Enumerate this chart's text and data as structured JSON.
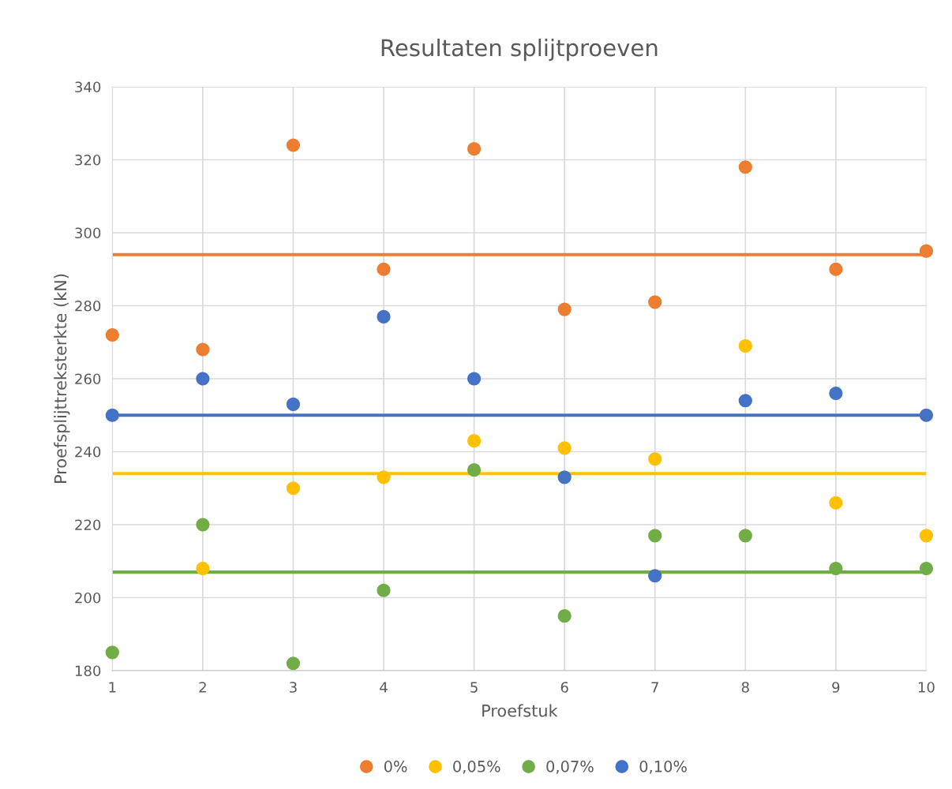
{
  "chart_data": {
    "type": "scatter",
    "title": "Resultaten splijtproeven",
    "xlabel": "Proefstuk",
    "ylabel": "Proefsplijttreksterkte (kN)",
    "x": [
      1,
      2,
      3,
      4,
      5,
      6,
      7,
      8,
      9,
      10
    ],
    "series": [
      {
        "name": "0%",
        "color": "#ed7d31",
        "values": [
          272,
          268,
          324,
          290,
          323,
          279,
          281,
          318,
          290,
          295
        ]
      },
      {
        "name": "0,05%",
        "color": "#ffc000",
        "values": [
          null,
          208,
          230,
          233,
          243,
          241,
          238,
          269,
          226,
          217
        ]
      },
      {
        "name": "0,07%",
        "color": "#70ad47",
        "values": [
          185,
          220,
          182,
          202,
          235,
          195,
          217,
          217,
          208,
          208
        ]
      },
      {
        "name": "0,10%",
        "color": "#4472c4",
        "values": [
          250,
          260,
          253,
          277,
          260,
          233,
          206,
          254,
          256,
          250
        ]
      }
    ],
    "ref_lines": [
      {
        "axis": "y",
        "value": 294,
        "color": "#ed7d31",
        "line_style": "solid"
      },
      {
        "axis": "y",
        "value": 234,
        "color": "#ffc000",
        "line_style": "solid"
      },
      {
        "axis": "y",
        "value": 207,
        "color": "#70ad47",
        "line_style": "solid"
      },
      {
        "axis": "y",
        "value": 250,
        "color": "#4472c4",
        "line_style": "solid"
      }
    ],
    "xlim": [
      1,
      10
    ],
    "xticks": [
      1,
      2,
      3,
      4,
      5,
      6,
      7,
      8,
      9,
      10
    ],
    "ylim": [
      180,
      340
    ],
    "yticks": [
      180,
      200,
      220,
      240,
      260,
      280,
      300,
      320,
      340
    ],
    "grid": true,
    "legend": "bottom",
    "marker": "circle"
  }
}
